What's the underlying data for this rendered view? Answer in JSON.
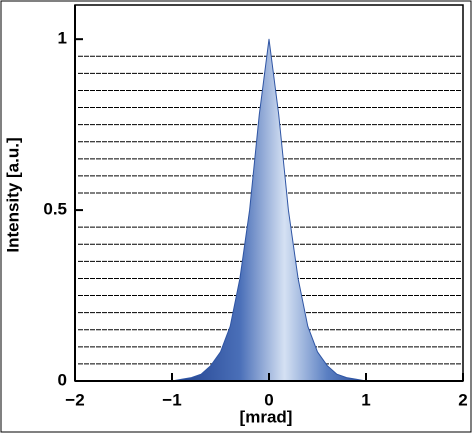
{
  "chart_data": {
    "type": "area",
    "x_label": "[mrad]",
    "y_label": "Intensity [a.u.]",
    "x": [
      -1,
      -0.9,
      -0.8,
      -0.7,
      -0.6,
      -0.5,
      -0.4,
      -0.3,
      -0.2,
      -0.1,
      0,
      0.1,
      0.2,
      0.3,
      0.4,
      0.5,
      0.6,
      0.7,
      0.8,
      0.9,
      1
    ],
    "values": [
      0,
      0.005,
      0.01,
      0.02,
      0.045,
      0.085,
      0.16,
      0.3,
      0.5,
      0.78,
      1,
      0.78,
      0.5,
      0.3,
      0.16,
      0.085,
      0.045,
      0.02,
      0.01,
      0.005,
      0
    ],
    "color": "#2f55a4",
    "xlim": [
      -2,
      2
    ],
    "ylim": [
      0,
      1.1
    ],
    "xticks": [
      {
        "value": -2,
        "label": "−2"
      },
      {
        "value": -1,
        "label": "−1"
      },
      0,
      1,
      2
    ],
    "yticks": [
      0,
      0.5,
      1
    ],
    "minor_yticks": [
      0.05,
      0.1,
      0.15,
      0.2,
      0.25,
      0.3,
      0.35,
      0.4,
      0.45,
      0.55,
      0.6,
      0.65,
      0.7,
      0.75,
      0.8,
      0.85,
      0.9,
      0.95
    ],
    "grid": true
  }
}
